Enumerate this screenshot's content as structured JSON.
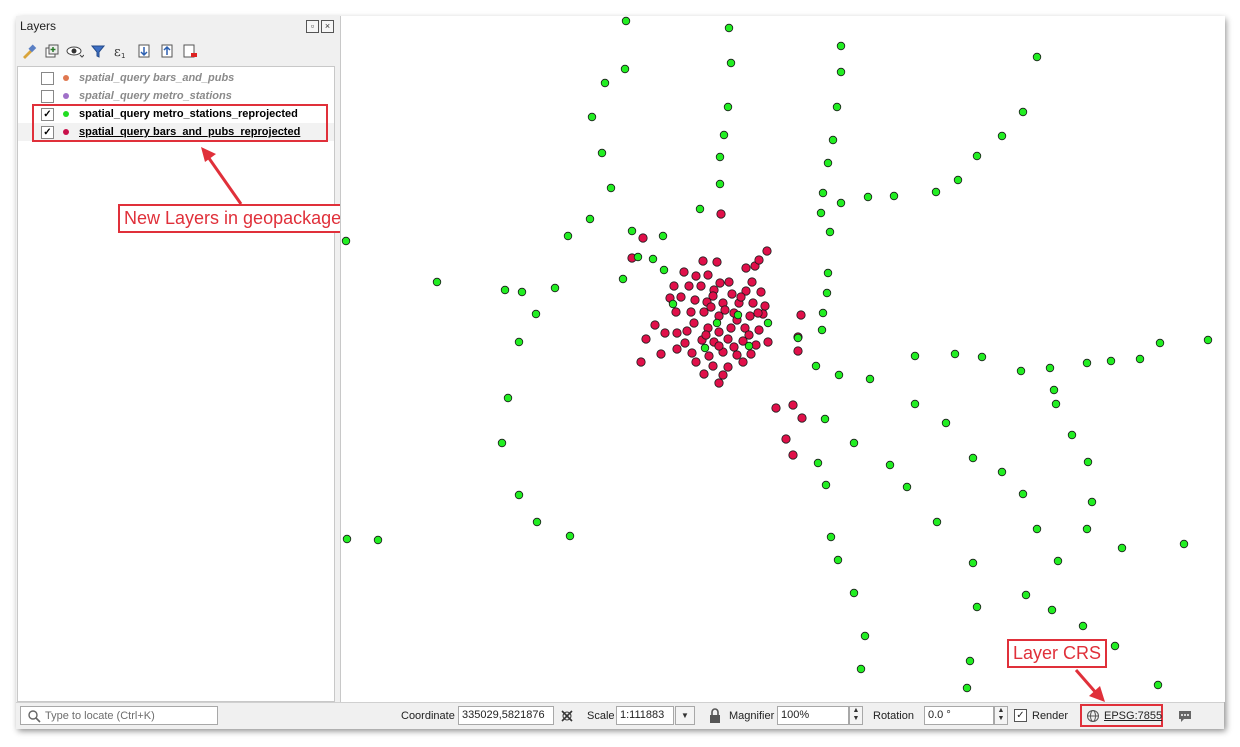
{
  "layers_panel": {
    "title": "Layers",
    "toolbar_icons": [
      "style-brush-icon",
      "add-group-icon",
      "visibility-eye-icon",
      "filter-icon",
      "expression-filter-icon",
      "expand-all-icon",
      "collapse-all-icon",
      "remove-layer-icon"
    ],
    "layers": [
      {
        "name": "spatial_query bars_and_pubs",
        "checked": false,
        "color": "#e07850"
      },
      {
        "name": "spatial_query metro_stations",
        "checked": false,
        "color": "#a070c8"
      },
      {
        "name": "spatial_query metro_stations_reprojected",
        "checked": true,
        "color": "#22dd22"
      },
      {
        "name": "spatial_query bars_and_pubs_reprojected",
        "checked": true,
        "color": "#c8104a"
      }
    ]
  },
  "annotations": {
    "new_layers_callout": "New Layers in geopackage",
    "layer_crs_callout": "Layer CRS",
    "color": "#e0303a"
  },
  "map": {
    "station_color": "#22ee22",
    "bar_color": "#e0104a"
  },
  "statusbar": {
    "locator_placeholder": "Type to locate (Ctrl+K)",
    "coordinate_label": "Coordinate",
    "coordinate_value": "335029,5821876",
    "scale_label": "Scale",
    "scale_value": "1:111883",
    "magnifier_label": "Magnifier",
    "magnifier_value": "100%",
    "rotation_label": "Rotation",
    "rotation_value": "0.0 °",
    "render_label": "Render",
    "render_checked": true,
    "crs_value": "EPSG:7855"
  }
}
